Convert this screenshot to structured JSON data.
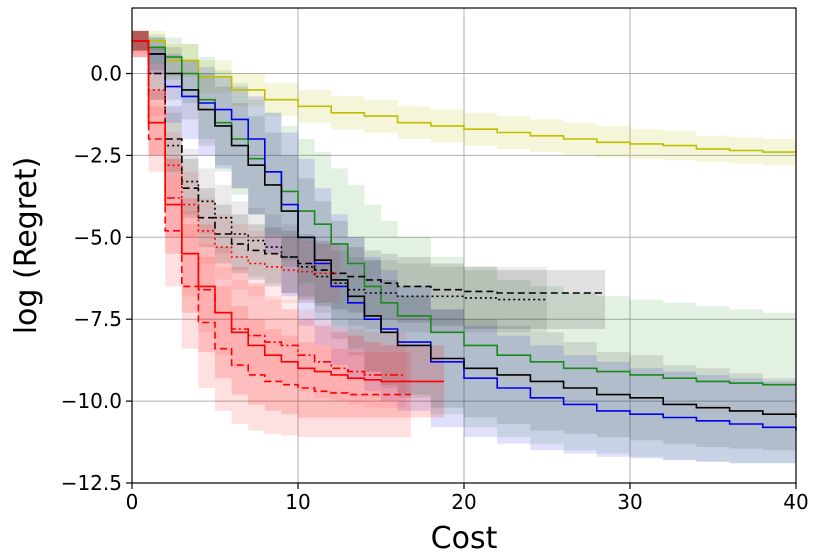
{
  "chart_data": {
    "type": "line",
    "title": "",
    "xlabel": "Cost",
    "ylabel": "log (Regret)",
    "xlim": [
      0,
      40
    ],
    "ylim": [
      -12.5,
      2
    ],
    "xticks": [
      0,
      10,
      20,
      30,
      40
    ],
    "yticks": [
      0.0,
      -2.5,
      -5.0,
      -7.5,
      -10.0,
      -12.5
    ],
    "xtick_labels": [
      "0",
      "10",
      "20",
      "30",
      "40"
    ],
    "ytick_labels": [
      "0.0",
      "−2.5",
      "−5.0",
      "−7.5",
      "−10.0",
      "−12.5"
    ],
    "grid": true,
    "series": [
      {
        "name": "yellow",
        "color": "#bfbf00",
        "style": "solid",
        "band_alpha": 0.15,
        "x": [
          0,
          2,
          4,
          6,
          8,
          10,
          12,
          14,
          16,
          18,
          20,
          22,
          24,
          26,
          28,
          30,
          32,
          34,
          36,
          38,
          40
        ],
        "y": [
          1.0,
          0.4,
          -0.1,
          -0.5,
          -0.8,
          -1.0,
          -1.2,
          -1.3,
          -1.5,
          -1.6,
          -1.7,
          -1.8,
          -1.9,
          -2.0,
          -2.1,
          -2.15,
          -2.2,
          -2.3,
          -2.35,
          -2.4,
          -2.4
        ],
        "lower": [
          0.7,
          -0.1,
          -0.6,
          -1.0,
          -1.3,
          -1.5,
          -1.7,
          -1.8,
          -2.0,
          -2.1,
          -2.2,
          -2.3,
          -2.4,
          -2.5,
          -2.55,
          -2.6,
          -2.65,
          -2.7,
          -2.75,
          -2.8,
          -2.8
        ],
        "upper": [
          1.3,
          0.9,
          0.4,
          0.0,
          -0.3,
          -0.5,
          -0.7,
          -0.8,
          -1.0,
          -1.1,
          -1.2,
          -1.3,
          -1.4,
          -1.5,
          -1.6,
          -1.7,
          -1.75,
          -1.9,
          -1.95,
          -2.0,
          -2.0
        ]
      },
      {
        "name": "green",
        "color": "#1a8a1a",
        "style": "solid",
        "band_alpha": 0.12,
        "x": [
          0,
          1,
          2,
          3,
          4,
          5,
          6,
          7,
          8,
          9,
          10,
          11,
          12,
          13,
          14,
          15,
          16,
          18,
          20,
          22,
          24,
          26,
          28,
          30,
          32,
          34,
          36,
          38,
          40
        ],
        "y": [
          1.0,
          0.8,
          0.5,
          0.0,
          -0.8,
          -1.5,
          -2.0,
          -2.6,
          -3.0,
          -3.6,
          -4.2,
          -4.6,
          -5.2,
          -5.8,
          -6.5,
          -7.0,
          -7.4,
          -7.9,
          -8.3,
          -8.6,
          -8.8,
          -9.0,
          -9.1,
          -9.2,
          -9.3,
          -9.4,
          -9.45,
          -9.5,
          -9.5
        ],
        "lower": [
          0.7,
          0.3,
          -0.2,
          -0.9,
          -2.0,
          -3.0,
          -3.7,
          -4.3,
          -4.9,
          -5.7,
          -6.4,
          -7.0,
          -7.7,
          -8.4,
          -9.1,
          -9.6,
          -9.9,
          -10.4,
          -10.8,
          -11.1,
          -11.3,
          -11.5,
          -11.6,
          -11.7,
          -11.8,
          -11.85,
          -11.9,
          -11.9,
          -11.9
        ],
        "upper": [
          1.3,
          1.2,
          1.1,
          0.9,
          0.5,
          0.1,
          -0.3,
          -0.8,
          -1.2,
          -1.6,
          -2.0,
          -2.4,
          -2.9,
          -3.4,
          -4.0,
          -4.5,
          -5.0,
          -5.6,
          -6.0,
          -6.3,
          -6.5,
          -6.7,
          -6.8,
          -6.9,
          -7.0,
          -7.1,
          -7.2,
          -7.3,
          -7.3
        ]
      },
      {
        "name": "blue",
        "color": "#0000ee",
        "style": "solid",
        "band_alpha": 0.12,
        "x": [
          0,
          1,
          2,
          3,
          4,
          5,
          6,
          7,
          8,
          9,
          10,
          11,
          12,
          13,
          14,
          15,
          16,
          18,
          20,
          22,
          24,
          26,
          28,
          30,
          32,
          34,
          36,
          38,
          40
        ],
        "y": [
          1.0,
          0.6,
          -0.4,
          -0.7,
          -0.9,
          -1.1,
          -1.4,
          -2.0,
          -3.0,
          -4.0,
          -5.0,
          -5.8,
          -6.5,
          -7.0,
          -7.5,
          -7.8,
          -8.2,
          -8.8,
          -9.3,
          -9.6,
          -9.9,
          -10.1,
          -10.3,
          -10.4,
          -10.5,
          -10.6,
          -10.7,
          -10.8,
          -10.9
        ],
        "lower": [
          0.7,
          0.0,
          -1.5,
          -2.0,
          -2.5,
          -2.9,
          -3.5,
          -4.3,
          -5.5,
          -6.8,
          -7.7,
          -8.3,
          -8.9,
          -9.3,
          -9.7,
          -10.0,
          -10.3,
          -10.8,
          -11.1,
          -11.3,
          -11.5,
          -11.6,
          -11.7,
          -11.75,
          -11.8,
          -11.85,
          -11.9,
          -11.9,
          -12.0
        ],
        "upper": [
          1.3,
          1.1,
          0.6,
          0.4,
          0.2,
          -0.1,
          -0.4,
          -0.7,
          -1.2,
          -1.8,
          -2.6,
          -3.5,
          -4.3,
          -5.0,
          -5.6,
          -6.0,
          -6.5,
          -7.2,
          -7.7,
          -8.0,
          -8.3,
          -8.6,
          -8.8,
          -9.0,
          -9.1,
          -9.2,
          -9.3,
          -9.4,
          -9.5
        ]
      },
      {
        "name": "black",
        "color": "#000000",
        "style": "solid",
        "band_alpha": 0.1,
        "x": [
          0,
          1,
          2,
          3,
          4,
          5,
          6,
          7,
          8,
          9,
          10,
          11,
          12,
          13,
          14,
          15,
          16,
          18,
          20,
          22,
          24,
          26,
          28,
          30,
          32,
          34,
          36,
          38,
          40
        ],
        "y": [
          1.0,
          0.6,
          0.0,
          -0.5,
          -1.1,
          -1.6,
          -2.2,
          -2.8,
          -3.4,
          -4.2,
          -5.0,
          -5.7,
          -6.3,
          -6.8,
          -7.4,
          -7.9,
          -8.3,
          -8.7,
          -9.0,
          -9.2,
          -9.4,
          -9.6,
          -9.8,
          -9.9,
          -10.1,
          -10.2,
          -10.3,
          -10.4,
          -10.5
        ],
        "lower": [
          0.7,
          0.1,
          -0.8,
          -1.4,
          -2.2,
          -2.8,
          -3.5,
          -4.3,
          -5.0,
          -5.9,
          -6.8,
          -7.5,
          -8.1,
          -8.6,
          -9.1,
          -9.5,
          -9.8,
          -10.2,
          -10.5,
          -10.7,
          -10.9,
          -11.0,
          -11.1,
          -11.2,
          -11.3,
          -11.4,
          -11.45,
          -11.5,
          -11.6
        ],
        "upper": [
          1.3,
          1.1,
          0.8,
          0.4,
          0.0,
          -0.4,
          -0.9,
          -1.3,
          -1.8,
          -2.5,
          -3.2,
          -3.9,
          -4.5,
          -5.0,
          -5.7,
          -6.3,
          -6.8,
          -7.2,
          -7.5,
          -7.7,
          -7.9,
          -8.2,
          -8.5,
          -8.6,
          -8.9,
          -9.0,
          -9.15,
          -9.3,
          -9.4
        ]
      },
      {
        "name": "black-dashed",
        "color": "#000000",
        "style": "dashed",
        "band_alpha": 0.12,
        "x": [
          0,
          1,
          2,
          3,
          4,
          5,
          6,
          7,
          8,
          9,
          10,
          11,
          12,
          13,
          14,
          15,
          16,
          18,
          20,
          22,
          24,
          26,
          28.5
        ],
        "y": [
          1.0,
          0.0,
          -2.0,
          -3.5,
          -4.4,
          -4.9,
          -5.2,
          -5.4,
          -5.5,
          -5.6,
          -5.8,
          -6.0,
          -6.1,
          -6.2,
          -6.3,
          -6.4,
          -6.5,
          -6.6,
          -6.65,
          -6.7,
          -6.7,
          -6.7,
          -6.7
        ],
        "lower": [
          0.7,
          -0.8,
          -3.0,
          -4.4,
          -5.3,
          -5.8,
          -6.1,
          -6.3,
          -6.5,
          -6.7,
          -6.9,
          -7.1,
          -7.2,
          -7.3,
          -7.4,
          -7.5,
          -7.6,
          -7.7,
          -7.8,
          -7.8,
          -7.8,
          -7.8,
          -7.8
        ],
        "upper": [
          1.3,
          0.8,
          -1.0,
          -2.6,
          -3.5,
          -4.0,
          -4.3,
          -4.6,
          -4.7,
          -4.8,
          -5.0,
          -5.1,
          -5.2,
          -5.3,
          -5.4,
          -5.5,
          -5.6,
          -5.8,
          -5.9,
          -6.0,
          -6.0,
          -6.0,
          -6.0
        ]
      },
      {
        "name": "black-dotted",
        "color": "#000000",
        "style": "dotted",
        "band_alpha": 0.08,
        "x": [
          0,
          1,
          2,
          3,
          4,
          5,
          6,
          7,
          8,
          9,
          10,
          11,
          12,
          13,
          14,
          16,
          18,
          20,
          22,
          25
        ],
        "y": [
          1.0,
          0.0,
          -2.2,
          -3.3,
          -3.9,
          -4.4,
          -4.9,
          -5.1,
          -5.3,
          -5.6,
          -5.9,
          -6.2,
          -6.4,
          -6.6,
          -6.7,
          -6.8,
          -6.8,
          -6.85,
          -6.9,
          -6.9
        ],
        "lower": [
          0.7,
          -0.8,
          -3.2,
          -4.3,
          -4.9,
          -5.5,
          -6.0,
          -6.2,
          -6.4,
          -6.7,
          -7.0,
          -7.3,
          -7.5,
          -7.7,
          -7.8,
          -7.9,
          -7.9,
          -7.9,
          -7.9,
          -7.9
        ],
        "upper": [
          1.3,
          0.8,
          -1.2,
          -2.3,
          -2.9,
          -3.4,
          -3.9,
          -4.1,
          -4.3,
          -4.6,
          -4.9,
          -5.2,
          -5.4,
          -5.6,
          -5.7,
          -5.8,
          -5.9,
          -5.9,
          -5.9,
          -5.9
        ]
      },
      {
        "name": "red",
        "color": "#ff0000",
        "style": "solid",
        "band_alpha": 0.15,
        "x": [
          0,
          1,
          2,
          3,
          4,
          5,
          6,
          7,
          8,
          9,
          10,
          11,
          12,
          13,
          14,
          15,
          16,
          17,
          18.8
        ],
        "y": [
          1.0,
          -1.5,
          -4.0,
          -5.5,
          -6.5,
          -7.3,
          -7.9,
          -8.3,
          -8.6,
          -8.8,
          -9.0,
          -9.1,
          -9.2,
          -9.3,
          -9.35,
          -9.4,
          -9.4,
          -9.4,
          -9.4
        ],
        "lower": [
          0.5,
          -2.5,
          -5.5,
          -7.3,
          -8.5,
          -9.3,
          -9.8,
          -10.1,
          -10.3,
          -10.4,
          -10.5,
          -10.5,
          -10.5,
          -10.5,
          -10.5,
          -10.5,
          -10.5,
          -10.5,
          -10.5
        ],
        "upper": [
          1.3,
          -0.5,
          -2.6,
          -3.8,
          -4.6,
          -5.3,
          -5.9,
          -6.4,
          -6.9,
          -7.2,
          -7.5,
          -7.7,
          -7.9,
          -8.0,
          -8.2,
          -8.3,
          -8.3,
          -8.3,
          -8.3
        ]
      },
      {
        "name": "red-dashed",
        "color": "#ff0000",
        "style": "dashed",
        "band_alpha": 0.12,
        "x": [
          0,
          1,
          2,
          3,
          4,
          5,
          6,
          7,
          8,
          9,
          10,
          11,
          12,
          13,
          14,
          15,
          16.8
        ],
        "y": [
          1.0,
          -2.0,
          -4.8,
          -6.5,
          -7.6,
          -8.4,
          -8.9,
          -9.2,
          -9.4,
          -9.5,
          -9.6,
          -9.7,
          -9.75,
          -9.8,
          -9.8,
          -9.8,
          -9.8
        ],
        "lower": [
          0.5,
          -3.0,
          -6.5,
          -8.4,
          -9.6,
          -10.3,
          -10.7,
          -10.9,
          -11.0,
          -11.05,
          -11.1,
          -11.1,
          -11.1,
          -11.1,
          -11.1,
          -11.1,
          -11.1
        ],
        "upper": [
          1.3,
          -1.0,
          -3.2,
          -4.6,
          -5.6,
          -6.5,
          -7.1,
          -7.5,
          -7.8,
          -8.0,
          -8.2,
          -8.3,
          -8.4,
          -8.5,
          -8.5,
          -8.5,
          -8.5
        ]
      },
      {
        "name": "red-dashdot",
        "color": "#ff0000",
        "style": "dashdot",
        "band_alpha": 0.08,
        "x": [
          0,
          1,
          2,
          3,
          4,
          5,
          6,
          7,
          8,
          9,
          10,
          11,
          12,
          13,
          14,
          16.5
        ],
        "y": [
          1.0,
          -1.5,
          -3.8,
          -5.5,
          -6.6,
          -7.3,
          -7.8,
          -8.0,
          -8.2,
          -8.3,
          -8.6,
          -8.8,
          -9.0,
          -9.1,
          -9.2,
          -9.2
        ],
        "lower": [
          0.5,
          -2.5,
          -5.0,
          -6.8,
          -7.9,
          -8.6,
          -9.0,
          -9.2,
          -9.4,
          -9.5,
          -9.7,
          -9.9,
          -10.0,
          -10.1,
          -10.2,
          -10.2
        ],
        "upper": [
          1.3,
          -0.5,
          -2.6,
          -4.2,
          -5.2,
          -5.9,
          -6.3,
          -6.5,
          -6.8,
          -6.9,
          -7.2,
          -7.5,
          -7.7,
          -7.8,
          -7.9,
          -7.9
        ]
      },
      {
        "name": "red-dotted",
        "color": "#ff0000",
        "style": "dotted",
        "band_alpha": 0.08,
        "x": [
          0,
          1,
          2,
          3,
          4,
          5,
          6,
          7,
          8,
          9,
          10,
          11,
          12,
          12.5
        ],
        "y": [
          1.0,
          -0.5,
          -2.8,
          -4.0,
          -4.8,
          -5.3,
          -5.6,
          -5.8,
          -5.9,
          -6.0,
          -6.05,
          -6.1,
          -6.1,
          -6.1
        ],
        "lower": [
          0.6,
          -1.3,
          -3.8,
          -5.0,
          -5.8,
          -6.3,
          -6.6,
          -6.8,
          -6.9,
          -7.0,
          -7.0,
          -7.0,
          -7.0,
          -7.0
        ],
        "upper": [
          1.3,
          0.3,
          -1.8,
          -3.0,
          -3.8,
          -4.3,
          -4.6,
          -4.8,
          -4.9,
          -5.0,
          -5.1,
          -5.2,
          -5.2,
          -5.2
        ]
      }
    ]
  }
}
